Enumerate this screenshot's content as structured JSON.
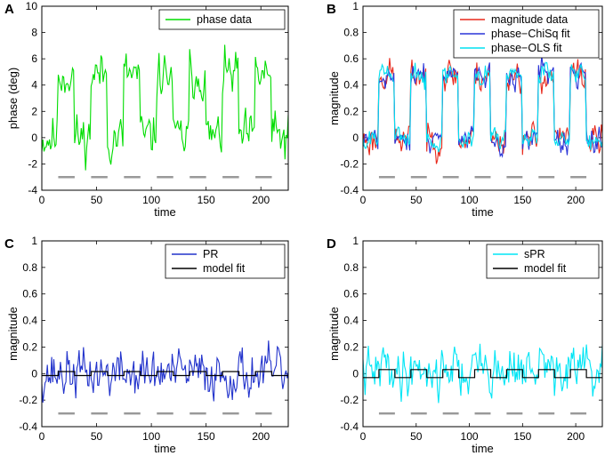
{
  "chart_data": [
    {
      "panel_label": "A",
      "type": "line",
      "xlabel": "time",
      "ylabel": "phase (deg)",
      "xlim": [
        0,
        225
      ],
      "ylim": [
        -4,
        10
      ],
      "xticks": [
        0,
        50,
        100,
        150,
        200
      ],
      "yticks": [
        -4,
        -2,
        0,
        2,
        4,
        6,
        8,
        10
      ],
      "legend_position": "top-right",
      "block_marker_y": -3,
      "block_segments": [
        [
          15,
          30
        ],
        [
          45,
          60
        ],
        [
          75,
          90
        ],
        [
          105,
          120
        ],
        [
          135,
          150
        ],
        [
          165,
          180
        ],
        [
          195,
          210
        ]
      ],
      "series": [
        {
          "name": "phase data",
          "color": "#00dd00",
          "generator": {
            "base": 0.0,
            "amp": 4.8,
            "noise": 1.3,
            "seed": 11
          }
        }
      ]
    },
    {
      "panel_label": "B",
      "type": "line",
      "xlabel": "time",
      "ylabel": "magnitude",
      "xlim": [
        0,
        225
      ],
      "ylim": [
        -0.4,
        1
      ],
      "xticks": [
        0,
        50,
        100,
        150,
        200
      ],
      "yticks": [
        -0.4,
        -0.2,
        0,
        0.2,
        0.4,
        0.6,
        0.8,
        1
      ],
      "legend_position": "top-right",
      "block_marker_y": -0.3,
      "block_segments": [
        [
          15,
          30
        ],
        [
          45,
          60
        ],
        [
          75,
          90
        ],
        [
          105,
          120
        ],
        [
          135,
          150
        ],
        [
          165,
          180
        ],
        [
          195,
          210
        ]
      ],
      "series": [
        {
          "name": "magnitude data",
          "color": "#e8291c",
          "generator": {
            "base": -0.02,
            "amp": 0.5,
            "noise": 0.09,
            "seed": 23
          }
        },
        {
          "name": "phase−ChiSq fit",
          "color": "#2a35d8",
          "generator": {
            "base": -0.02,
            "amp": 0.5,
            "noise": 0.07,
            "seed": 24
          }
        },
        {
          "name": "phase−OLS fit",
          "color": "#00e0f0",
          "generator": {
            "base": -0.02,
            "amp": 0.5,
            "noise": 0.06,
            "seed": 25
          }
        }
      ]
    },
    {
      "panel_label": "C",
      "type": "line",
      "xlabel": "time",
      "ylabel": "magnitude",
      "xlim": [
        0,
        225
      ],
      "ylim": [
        -0.4,
        1
      ],
      "xticks": [
        0,
        50,
        100,
        150,
        200
      ],
      "yticks": [
        -0.4,
        -0.2,
        0,
        0.2,
        0.4,
        0.6,
        0.8,
        1
      ],
      "legend_position": "top-right",
      "block_marker_y": -0.3,
      "block_segments": [
        [
          15,
          30
        ],
        [
          45,
          60
        ],
        [
          75,
          90
        ],
        [
          105,
          120
        ],
        [
          135,
          150
        ],
        [
          165,
          180
        ],
        [
          195,
          210
        ]
      ],
      "series": [
        {
          "name": "PR",
          "color": "#2233cc",
          "generator": {
            "base": 0.0,
            "amp": 0.0,
            "noise": 0.13,
            "seed": 37
          }
        },
        {
          "name": "model fit",
          "color": "#000000",
          "step": {
            "low": -0.015,
            "high": 0.015
          }
        }
      ]
    },
    {
      "panel_label": "D",
      "type": "line",
      "xlabel": "time",
      "ylabel": "magnitude",
      "xlim": [
        0,
        225
      ],
      "ylim": [
        -0.4,
        1
      ],
      "xticks": [
        0,
        50,
        100,
        150,
        200
      ],
      "yticks": [
        -0.4,
        -0.2,
        0,
        0.2,
        0.4,
        0.6,
        0.8,
        1
      ],
      "legend_position": "top-right",
      "block_marker_y": -0.3,
      "block_segments": [
        [
          15,
          30
        ],
        [
          45,
          60
        ],
        [
          75,
          90
        ],
        [
          105,
          120
        ],
        [
          135,
          150
        ],
        [
          165,
          180
        ],
        [
          195,
          210
        ]
      ],
      "series": [
        {
          "name": "sPR",
          "color": "#00e5f5",
          "generator": {
            "base": 0.0,
            "amp": 0.06,
            "noise": 0.13,
            "seed": 41
          }
        },
        {
          "name": "model fit",
          "color": "#000000",
          "step": {
            "low": -0.03,
            "high": 0.03
          }
        }
      ]
    }
  ]
}
